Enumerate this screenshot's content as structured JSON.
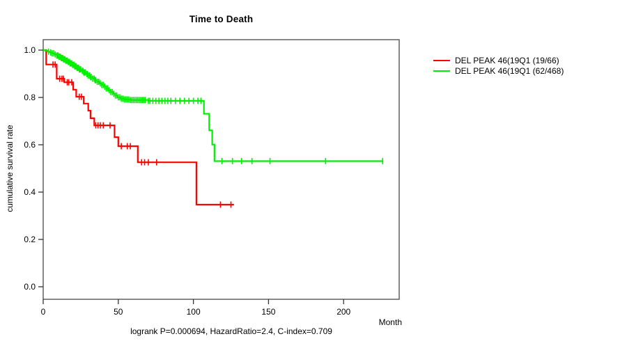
{
  "chart_data": {
    "type": "line",
    "subtype": "kaplan-meier-step",
    "title": "Time to Death",
    "xlabel": "Month",
    "ylabel": "cumulative survival rate",
    "footer_stats": "logrank P=0.000694, HazardRatio=2.4, C-index=0.709",
    "x_ticks": [
      0,
      50,
      100,
      150,
      200
    ],
    "y_ticks": [
      0.0,
      0.2,
      0.4,
      0.6,
      0.8,
      1.0
    ],
    "xlim": [
      0,
      237
    ],
    "ylim": [
      0.0,
      1.0
    ],
    "grid": false,
    "legend_position": "right",
    "series": [
      {
        "name": "DEL PEAK 46(19Q1 (19/66)",
        "color": "#ff0000",
        "end_month": 127,
        "steps": [
          [
            0,
            1.0
          ],
          [
            2,
            0.939
          ],
          [
            9,
            0.879
          ],
          [
            14,
            0.864
          ],
          [
            20,
            0.833
          ],
          [
            22,
            0.803
          ],
          [
            27,
            0.774
          ],
          [
            30,
            0.744
          ],
          [
            31.5,
            0.712
          ],
          [
            34,
            0.682
          ],
          [
            47.5,
            0.632
          ],
          [
            50,
            0.594
          ],
          [
            63,
            0.526
          ],
          [
            102,
            0.347
          ]
        ],
        "censor_months": [
          6.5,
          8,
          11,
          12.5,
          13.5,
          16,
          17,
          19,
          24,
          25.5,
          35,
          36.5,
          38,
          40,
          44.5,
          52,
          56,
          58,
          65.5,
          67.5,
          70,
          75.5,
          118,
          125
        ]
      },
      {
        "name": "DEL PEAK 46(19Q1 (62/468)",
        "color": "#00ee00",
        "end_month": 226,
        "steps": [
          [
            0,
            1.0
          ],
          [
            1.5,
            0.997
          ],
          [
            3,
            0.9935
          ],
          [
            4.5,
            0.99
          ],
          [
            6,
            0.9865
          ],
          [
            7.5,
            0.982
          ],
          [
            9,
            0.977
          ],
          [
            10.5,
            0.972
          ],
          [
            12,
            0.9665
          ],
          [
            13.5,
            0.961
          ],
          [
            15,
            0.9555
          ],
          [
            16.5,
            0.95
          ],
          [
            18,
            0.944
          ],
          [
            19.5,
            0.938
          ],
          [
            21,
            0.9315
          ],
          [
            22.5,
            0.925
          ],
          [
            24,
            0.9185
          ],
          [
            25.5,
            0.912
          ],
          [
            27,
            0.9055
          ],
          [
            28.5,
            0.899
          ],
          [
            30,
            0.8925
          ],
          [
            31.5,
            0.886
          ],
          [
            33,
            0.8795
          ],
          [
            34.5,
            0.873
          ],
          [
            36,
            0.866
          ],
          [
            37.5,
            0.8595
          ],
          [
            39,
            0.853
          ],
          [
            40.5,
            0.8455
          ],
          [
            42,
            0.838
          ],
          [
            43.5,
            0.8305
          ],
          [
            45,
            0.823
          ],
          [
            46.5,
            0.8155
          ],
          [
            48,
            0.808
          ],
          [
            49.5,
            0.8005
          ],
          [
            51.5,
            0.795
          ],
          [
            54,
            0.7915
          ],
          [
            58,
            0.789
          ],
          [
            70,
            0.7855
          ],
          [
            107,
            0.731
          ],
          [
            110.5,
            0.661
          ],
          [
            112.5,
            0.601
          ],
          [
            114,
            0.531
          ]
        ],
        "censor_months": [
          3.5,
          5,
          6,
          7,
          8,
          9,
          9.5,
          10,
          10.5,
          11,
          11.5,
          12,
          12.5,
          13,
          13.5,
          14,
          14.5,
          15,
          15.5,
          16,
          16.5,
          17,
          17.5,
          18,
          18.5,
          19,
          19.5,
          20,
          20.5,
          21,
          21.5,
          22,
          22.5,
          23,
          23.5,
          24,
          24.5,
          25,
          26,
          26.5,
          27,
          27.5,
          28,
          29,
          29.5,
          30,
          31,
          31.5,
          32,
          33,
          34,
          34.5,
          35,
          36,
          37,
          38,
          39,
          40,
          41,
          42,
          43,
          44,
          45,
          46,
          47,
          48,
          49,
          50,
          51,
          52,
          53,
          54,
          55,
          56,
          57,
          58,
          59,
          60,
          61,
          62,
          63,
          64,
          65,
          66,
          67,
          68,
          70,
          71,
          73,
          75,
          77,
          79,
          81,
          83,
          85,
          88,
          91,
          94,
          97,
          100,
          103,
          105,
          119,
          126,
          132,
          139,
          151,
          188,
          226
        ]
      }
    ],
    "colors": {
      "frame": "#555555",
      "tick": "#333333",
      "text": "#000000",
      "background": "#ffffff"
    }
  }
}
